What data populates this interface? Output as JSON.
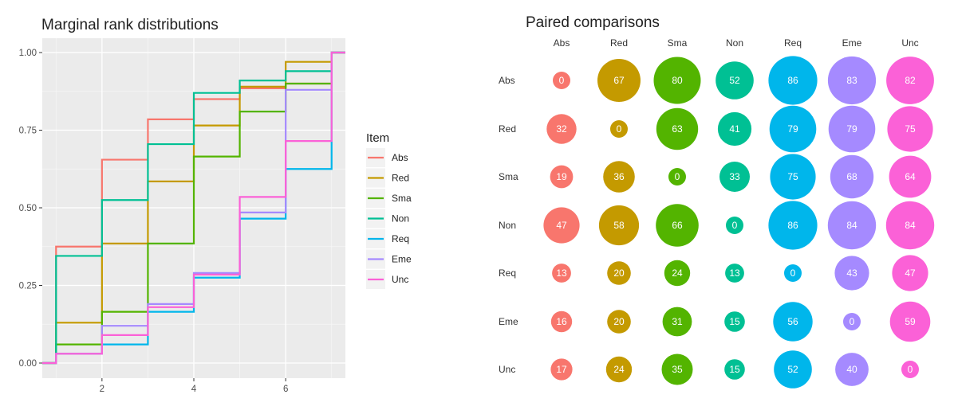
{
  "chart_data": [
    {
      "type": "line",
      "subtype": "step-ecdf",
      "title": "Marginal rank distributions",
      "xlabel": "",
      "ylabel": "",
      "xlim": [
        0.7,
        7.3
      ],
      "ylim": [
        0,
        1
      ],
      "x_ticks": [
        2,
        4,
        6
      ],
      "y_ticks": [
        0,
        0.25,
        0.5,
        0.75,
        1
      ],
      "y_tick_labels": [
        "0.00",
        "0.25",
        "0.50",
        "0.75",
        "1.00"
      ],
      "grid": true,
      "legend": {
        "title": "Item",
        "position": "right"
      },
      "x": [
        1,
        2,
        3,
        4,
        5,
        6,
        7
      ],
      "series": [
        {
          "name": "Abs",
          "color": "#F8766D",
          "values": [
            0.375,
            0.655,
            0.785,
            0.85,
            0.885,
            0.9,
            1.0
          ]
        },
        {
          "name": "Red",
          "color": "#C49A00",
          "values": [
            0.13,
            0.385,
            0.585,
            0.765,
            0.89,
            0.97,
            1.0
          ]
        },
        {
          "name": "Sma",
          "color": "#53B400",
          "values": [
            0.06,
            0.165,
            0.385,
            0.665,
            0.81,
            0.9,
            1.0
          ]
        },
        {
          "name": "Non",
          "color": "#00C094",
          "values": [
            0.345,
            0.525,
            0.705,
            0.87,
            0.91,
            0.94,
            1.0
          ]
        },
        {
          "name": "Req",
          "color": "#00B6EB",
          "values": [
            0.03,
            0.06,
            0.165,
            0.275,
            0.465,
            0.625,
            1.0
          ]
        },
        {
          "name": "Eme",
          "color": "#A58AFF",
          "values": [
            0.03,
            0.12,
            0.19,
            0.29,
            0.485,
            0.88,
            1.0
          ]
        },
        {
          "name": "Unc",
          "color": "#FB61D7",
          "values": [
            0.03,
            0.09,
            0.18,
            0.285,
            0.535,
            0.715,
            1.0
          ]
        }
      ]
    },
    {
      "type": "heatmap",
      "subtype": "bubble-matrix",
      "title": "Paired comparisons",
      "columns": [
        "Abs",
        "Red",
        "Sma",
        "Non",
        "Req",
        "Eme",
        "Unc"
      ],
      "rows": [
        "Abs",
        "Red",
        "Sma",
        "Non",
        "Req",
        "Eme",
        "Unc"
      ],
      "column_colors": [
        "#F8766D",
        "#C49A00",
        "#53B400",
        "#00C094",
        "#00B6EB",
        "#A58AFF",
        "#FB61D7"
      ],
      "values": [
        [
          0,
          67,
          80,
          52,
          86,
          83,
          82
        ],
        [
          32,
          0,
          63,
          41,
          79,
          79,
          75
        ],
        [
          19,
          36,
          0,
          33,
          75,
          68,
          64
        ],
        [
          47,
          58,
          66,
          0,
          86,
          84,
          84
        ],
        [
          13,
          20,
          24,
          13,
          0,
          43,
          47
        ],
        [
          16,
          20,
          31,
          15,
          56,
          0,
          59
        ],
        [
          17,
          24,
          35,
          15,
          52,
          40,
          0
        ]
      ]
    }
  ]
}
